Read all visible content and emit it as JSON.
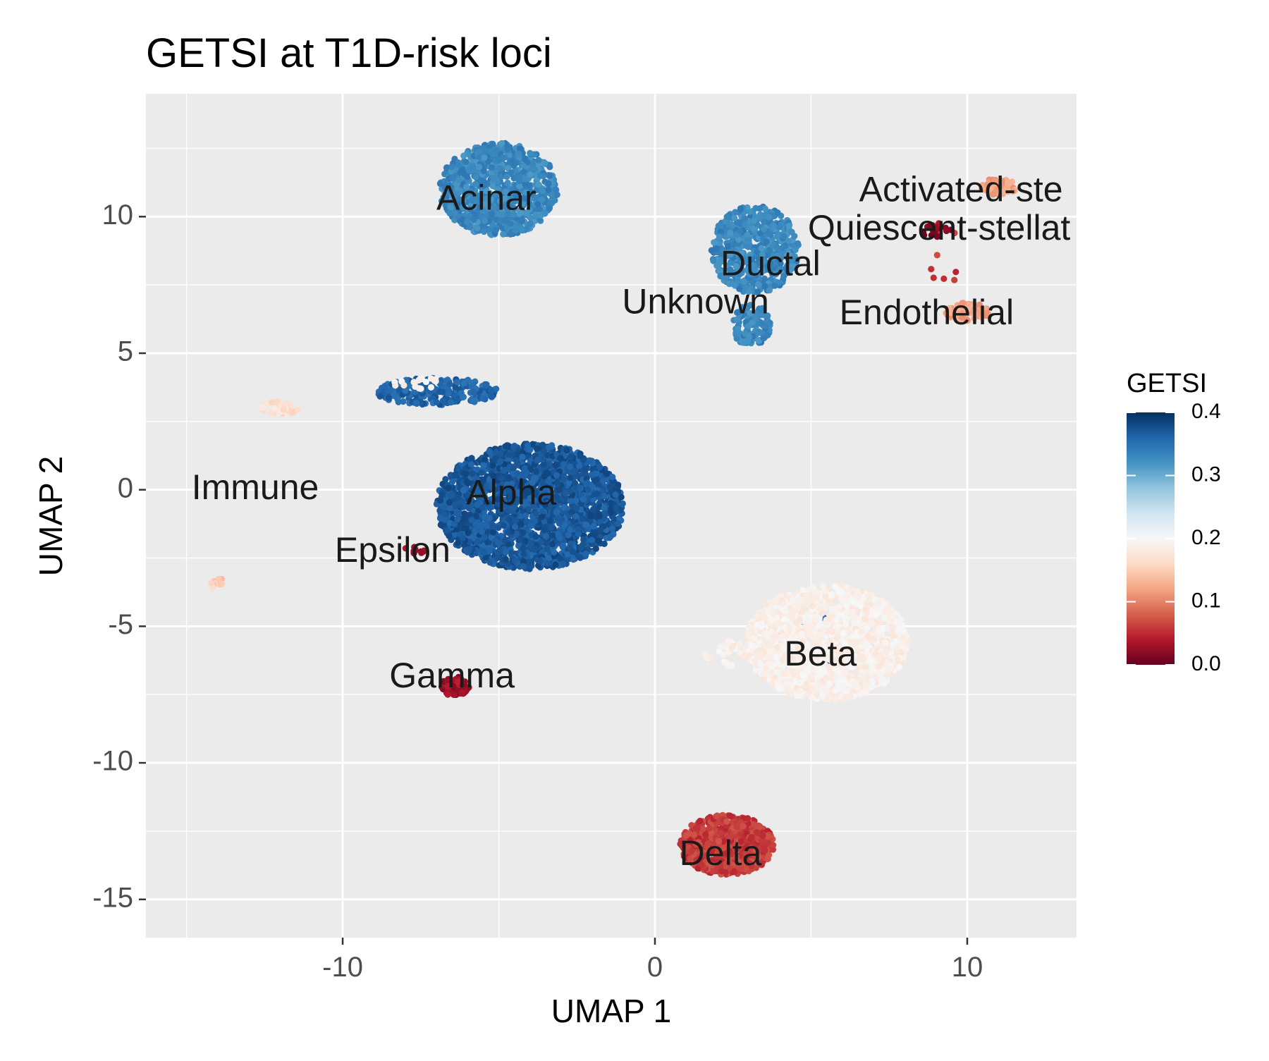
{
  "chart_data": {
    "type": "scatter",
    "title": "GETSI at T1D-risk loci",
    "xlabel": "UMAP 1",
    "ylabel": "UMAP 2",
    "xlim": [
      -16.3,
      13.5
    ],
    "ylim": [
      -16.4,
      14.5
    ],
    "grid": true,
    "x_ticks": [
      {
        "value": -10,
        "label": "-10"
      },
      {
        "value": 0,
        "label": "0"
      },
      {
        "value": 10,
        "label": "10"
      }
    ],
    "y_ticks": [
      {
        "value": 10,
        "label": "10"
      },
      {
        "value": 5,
        "label": "5"
      },
      {
        "value": 0,
        "label": "0"
      },
      {
        "value": -5,
        "label": "-5"
      },
      {
        "value": -10,
        "label": "-10"
      },
      {
        "value": -15,
        "label": "-15"
      }
    ],
    "legend": {
      "title": "GETSI",
      "position": "right",
      "range": [
        0.0,
        0.4
      ],
      "ticks": [
        {
          "value": 0.4,
          "label": "0.4"
        },
        {
          "value": 0.3,
          "label": "0.3"
        },
        {
          "value": 0.2,
          "label": "0.2"
        },
        {
          "value": 0.1,
          "label": "0.1"
        },
        {
          "value": 0.0,
          "label": "0.0"
        }
      ],
      "colors": [
        "#67001f",
        "#b2182b",
        "#d6604d",
        "#f4a582",
        "#fddbc7",
        "#f7f7f7",
        "#d1e5f0",
        "#92c5de",
        "#4393c3",
        "#2166ac",
        "#053061"
      ]
    },
    "clusters": [
      {
        "label": "Acinar",
        "cx": -5.0,
        "cy": 11.0,
        "rx": 1.9,
        "ry": 1.7,
        "getsi": 0.33,
        "n": 900,
        "label_x": -5.4,
        "label_y": 10.6
      },
      {
        "label": "Ductal",
        "cx": 3.2,
        "cy": 8.8,
        "rx": 1.4,
        "ry": 1.6,
        "getsi": 0.33,
        "n": 600,
        "label_x": 3.7,
        "label_y": 8.2
      },
      {
        "label": "Unknown",
        "cx": 3.1,
        "cy": 6.0,
        "rx": 0.6,
        "ry": 0.8,
        "getsi": 0.33,
        "n": 120,
        "label_x": 1.3,
        "label_y": 6.8
      },
      {
        "label": "Alpha",
        "cx": -4.0,
        "cy": -0.6,
        "rx": 3.0,
        "ry": 2.3,
        "getsi": 0.37,
        "n": 2200,
        "label_x": -4.6,
        "label_y": -0.2
      },
      {
        "label": "Beta",
        "cx": 5.5,
        "cy": -5.6,
        "rx": 2.6,
        "ry": 2.1,
        "getsi": 0.19,
        "n": 1800,
        "label_x": 5.3,
        "label_y": -6.1
      },
      {
        "label": "Delta",
        "cx": 2.3,
        "cy": -13.0,
        "rx": 1.5,
        "ry": 1.1,
        "getsi": 0.06,
        "n": 700,
        "label_x": 2.1,
        "label_y": -13.4
      },
      {
        "label": "Gamma",
        "cx": -6.4,
        "cy": -7.2,
        "rx": 0.45,
        "ry": 0.35,
        "getsi": 0.03,
        "n": 70,
        "label_x": -6.5,
        "label_y": -6.9
      },
      {
        "label": "Epsilon",
        "cx": -7.7,
        "cy": -2.2,
        "rx": 0.4,
        "ry": 0.15,
        "getsi": 0.03,
        "n": 12,
        "label_x": -8.4,
        "label_y": -2.3
      },
      {
        "label": "Immune",
        "cx": -12.0,
        "cy": 3.0,
        "rx": 0.6,
        "ry": 0.25,
        "getsi": 0.17,
        "n": 30,
        "label_x": -12.8,
        "label_y": 0.0
      },
      {
        "label": "Endothelial",
        "cx": 10.0,
        "cy": 6.5,
        "rx": 0.7,
        "ry": 0.35,
        "getsi": 0.12,
        "n": 90,
        "label_x": 8.7,
        "label_y": 6.4
      },
      {
        "label": "Quiescent-stellat",
        "cx": 9.0,
        "cy": 9.5,
        "rx": 0.5,
        "ry": 0.3,
        "getsi": 0.02,
        "n": 20,
        "label_x": 9.1,
        "label_y": 9.5
      },
      {
        "label": "Activated-ste",
        "cx": 11.0,
        "cy": 11.1,
        "rx": 0.6,
        "ry": 0.3,
        "getsi": 0.12,
        "n": 70,
        "label_x": 9.8,
        "label_y": 10.9
      }
    ],
    "extra_groups": [
      {
        "cx": -12.0,
        "cy": 2.9,
        "rx": 0.45,
        "ry": 0.18,
        "getsi": 0.16,
        "n": 16
      },
      {
        "cx": -14.0,
        "cy": -3.4,
        "rx": 0.25,
        "ry": 0.25,
        "getsi": 0.15,
        "n": 14
      },
      {
        "cx": -7.0,
        "cy": 3.6,
        "rx": 2.0,
        "ry": 0.5,
        "getsi": 0.36,
        "n": 260
      },
      {
        "cx": -7.6,
        "cy": 3.9,
        "rx": 0.9,
        "ry": 0.2,
        "getsi": 0.19,
        "n": 18
      },
      {
        "cx": 5.0,
        "cy": -5.5,
        "rx": 1.6,
        "ry": 1.2,
        "getsi": 0.35,
        "n": 35
      },
      {
        "cx": 2.9,
        "cy": -6.0,
        "rx": 1.4,
        "ry": 0.5,
        "getsi": 0.19,
        "n": 60
      },
      {
        "cx": 9.3,
        "cy": 8.5,
        "rx": 0.5,
        "ry": 1.2,
        "getsi": 0.06,
        "n": 8
      }
    ]
  }
}
